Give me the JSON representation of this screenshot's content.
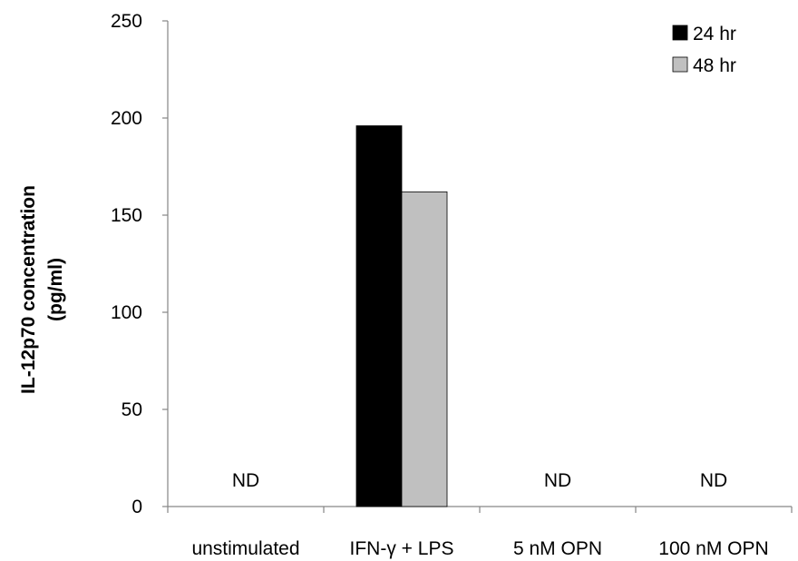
{
  "chart_data": {
    "type": "bar",
    "title": "",
    "xlabel": "",
    "ylabel_lines": [
      "IL-12p70 concentration",
      "(pg/ml)"
    ],
    "categories": [
      "unstimulated",
      "IFN-γ + LPS",
      "5 nM OPN",
      "100 nM OPN"
    ],
    "series": [
      {
        "name": "24 hr",
        "color": "#000000",
        "values": [
          null,
          196,
          null,
          null
        ]
      },
      {
        "name": "48 hr",
        "color": "#c0c0c0",
        "values": [
          null,
          162,
          null,
          null
        ]
      }
    ],
    "annotations": [
      "ND",
      "",
      "ND",
      "ND"
    ],
    "ylim": [
      0,
      250
    ],
    "yticks": [
      0,
      50,
      100,
      150,
      200,
      250
    ],
    "grid": false,
    "legend_position": "top-right"
  }
}
